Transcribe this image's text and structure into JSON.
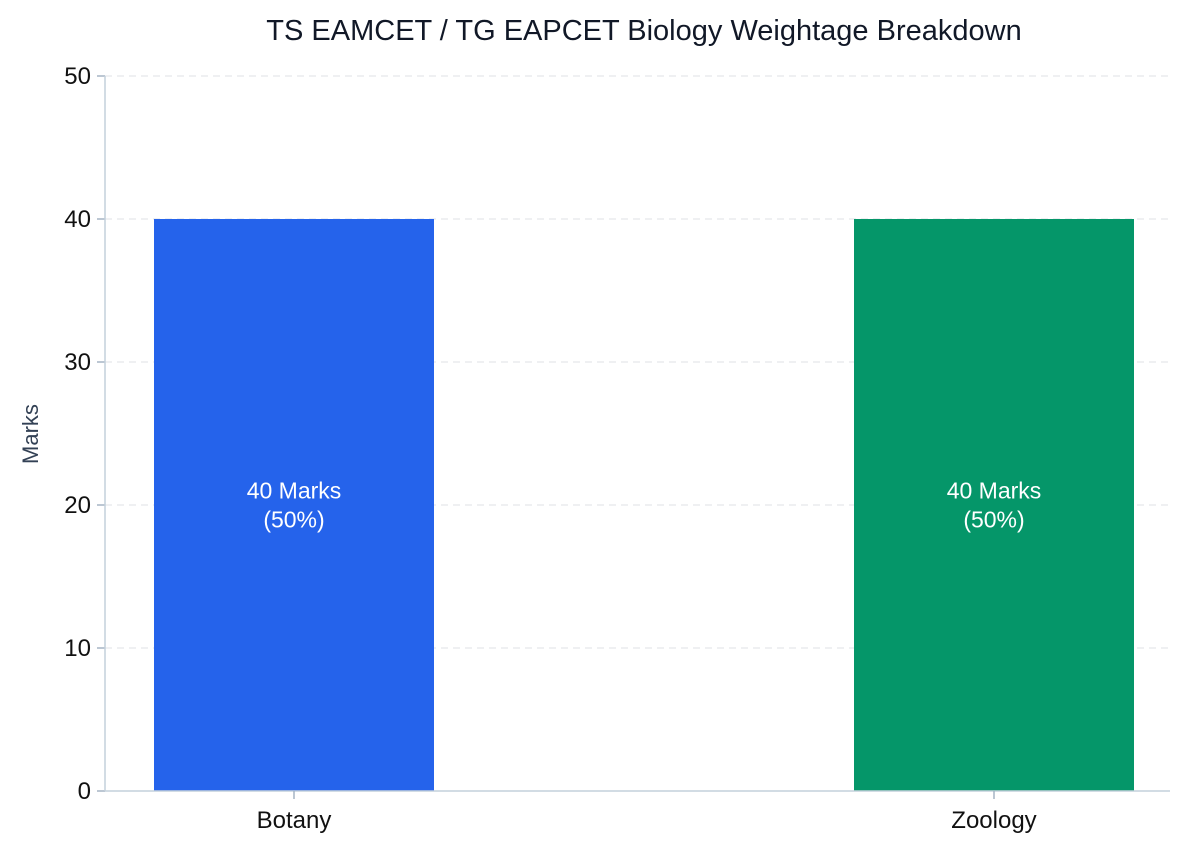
{
  "chart_data": {
    "type": "bar",
    "title": "TS EAMCET / TG EAPCET Biology Weightage Breakdown",
    "xlabel": "",
    "ylabel": "Marks",
    "categories": [
      "Botany",
      "Zoology"
    ],
    "values": [
      40,
      40
    ],
    "bar_labels": [
      [
        "40 Marks",
        "(50%)"
      ],
      [
        "40 Marks",
        "(50%)"
      ]
    ],
    "colors": [
      "#2563EB",
      "#059669"
    ],
    "ylim": [
      0,
      50
    ],
    "yticks": [
      "0",
      "10",
      "20",
      "30",
      "40",
      "50"
    ],
    "grid": "horizontal dashed",
    "legend": "none"
  }
}
